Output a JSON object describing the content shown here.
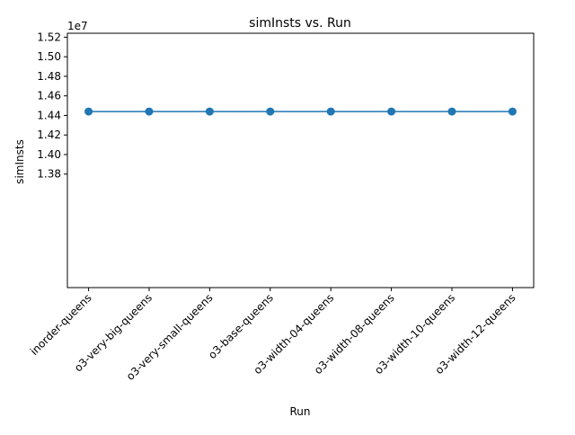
{
  "chart_data": {
    "type": "line",
    "title": "simInsts vs. Run",
    "xlabel": "Run",
    "ylabel": "simInsts",
    "y_offset_label": "1e7",
    "y_scale": 10000000,
    "categories": [
      "inorder-queens",
      "o3-very-big-queens",
      "o3-very-small-queens",
      "o3-base-queens",
      "o3-width-04-queens",
      "o3-width-08-queens",
      "o3-width-10-queens",
      "o3-width-12-queens"
    ],
    "series": [
      {
        "values": [
          14440000,
          14440000,
          14440000,
          14440000,
          14440000,
          14440000,
          14440000,
          14440000
        ],
        "color": "#1f77b4"
      }
    ],
    "ylim": [
      12640000,
      15240000
    ],
    "yticks": [
      13800000,
      14000000,
      14200000,
      14400000,
      14600000,
      14800000,
      15000000,
      15200000
    ],
    "ytick_labels": [
      "1.38",
      "1.40",
      "1.42",
      "1.44",
      "1.46",
      "1.48",
      "1.50",
      "1.52"
    ],
    "grid": false,
    "marker": "circle",
    "x_tick_rotation": 45
  }
}
